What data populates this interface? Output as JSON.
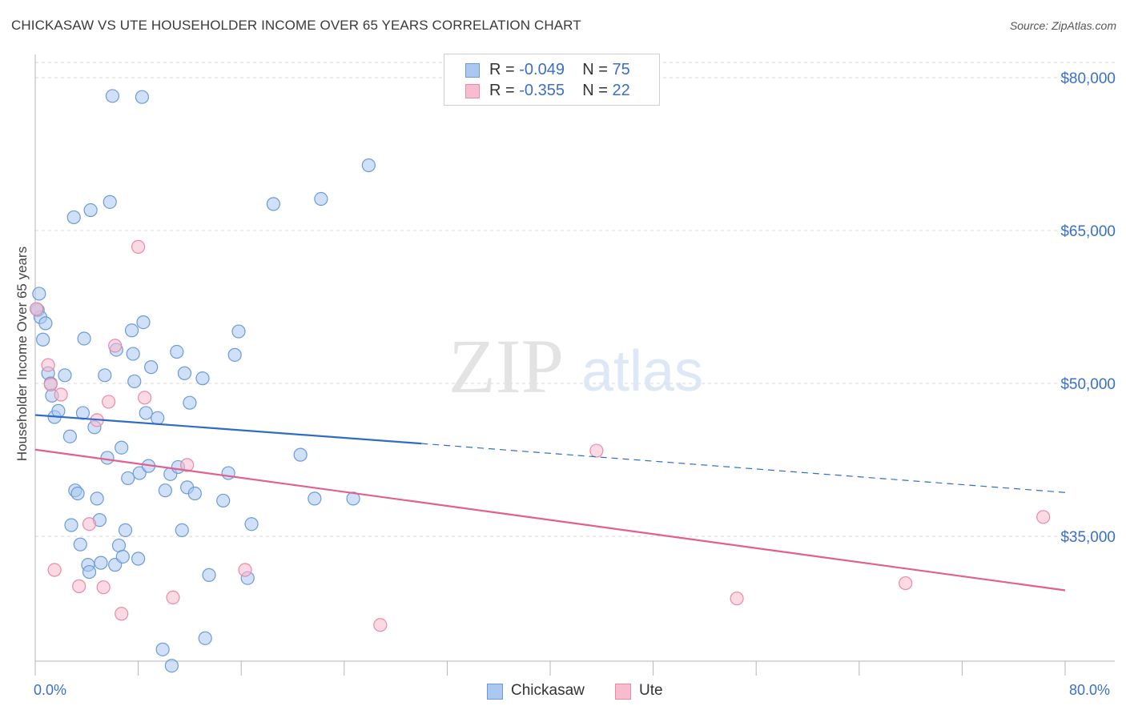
{
  "title": "CHICKASAW VS UTE HOUSEHOLDER INCOME OVER 65 YEARS CORRELATION CHART",
  "source": "Source: ZipAtlas.com",
  "watermark": {
    "zip": "ZIP",
    "atlas": "atlas"
  },
  "legend": {
    "rows": [
      {
        "r_label": "R =",
        "r_value": "-0.049",
        "n_label": "N =",
        "n_value": "75"
      },
      {
        "r_label": "R =",
        "r_value": "-0.355",
        "n_label": "N =",
        "n_value": "22"
      }
    ]
  },
  "bottom_legend": {
    "chickasaw": "Chickasaw",
    "ute": "Ute"
  },
  "x_axis": {
    "min_label": "0.0%",
    "max_label": "80.0%"
  },
  "colors": {
    "chickasaw_fill": "#aac8f0",
    "chickasaw_stroke": "#6c9ad8",
    "chickasaw_line": "#2f6cc8",
    "ute_fill": "#f7bccd",
    "ute_stroke": "#e88aa8",
    "ute_line": "#e0608e",
    "tick_text": "#3b6fc9",
    "grid": "#d9d9d9"
  },
  "chart_data": {
    "type": "scatter",
    "title": "CHICKASAW VS UTE HOUSEHOLDER INCOME OVER 65 YEARS CORRELATION CHART",
    "xlabel": "",
    "ylabel": "Householder Income Over 65 years",
    "xlim": [
      0,
      80
    ],
    "ylim": [
      20000,
      82500
    ],
    "y_ticks": [
      35000,
      50000,
      65000,
      80000
    ],
    "y_tick_labels": [
      "$35,000",
      "$50,000",
      "$65,000",
      "$80,000"
    ],
    "x_tick_labels_shown": [
      "0.0%",
      "80.0%"
    ],
    "grid": true,
    "legend_position": "top-center",
    "series": [
      {
        "name": "Chickasaw",
        "r": -0.049,
        "n": 75,
        "trend": {
          "x0": 0,
          "y0": 46900,
          "x1": 30,
          "y1": 44100,
          "dashed_to_x": 80,
          "dashed_y": 39300
        },
        "points": [
          [
            0.2,
            57200
          ],
          [
            0.3,
            58800
          ],
          [
            0.4,
            56500
          ],
          [
            0.6,
            54300
          ],
          [
            0.8,
            55900
          ],
          [
            1.0,
            51000
          ],
          [
            1.2,
            50000
          ],
          [
            1.3,
            48800
          ],
          [
            1.5,
            46700
          ],
          [
            1.8,
            47300
          ],
          [
            2.3,
            50800
          ],
          [
            2.7,
            44800
          ],
          [
            2.8,
            36100
          ],
          [
            3.0,
            66300
          ],
          [
            3.1,
            39500
          ],
          [
            3.3,
            39200
          ],
          [
            3.5,
            34200
          ],
          [
            3.7,
            47100
          ],
          [
            3.8,
            54400
          ],
          [
            4.1,
            32200
          ],
          [
            4.2,
            31500
          ],
          [
            4.3,
            67000
          ],
          [
            4.6,
            45700
          ],
          [
            4.8,
            38700
          ],
          [
            5.0,
            36600
          ],
          [
            5.1,
            32400
          ],
          [
            5.4,
            50800
          ],
          [
            5.6,
            42700
          ],
          [
            5.8,
            67800
          ],
          [
            6.0,
            78200
          ],
          [
            6.2,
            32200
          ],
          [
            6.3,
            53300
          ],
          [
            6.5,
            34100
          ],
          [
            6.7,
            43700
          ],
          [
            6.8,
            33000
          ],
          [
            7.0,
            35600
          ],
          [
            7.2,
            40700
          ],
          [
            7.5,
            55200
          ],
          [
            7.6,
            52900
          ],
          [
            7.7,
            50200
          ],
          [
            8.0,
            32800
          ],
          [
            8.1,
            41200
          ],
          [
            8.3,
            78100
          ],
          [
            8.4,
            56000
          ],
          [
            8.6,
            47100
          ],
          [
            8.8,
            41900
          ],
          [
            9.0,
            51600
          ],
          [
            9.5,
            46600
          ],
          [
            9.9,
            23900
          ],
          [
            10.1,
            39500
          ],
          [
            10.5,
            41100
          ],
          [
            10.6,
            22300
          ],
          [
            11.0,
            53100
          ],
          [
            11.1,
            41800
          ],
          [
            11.4,
            35600
          ],
          [
            11.6,
            51000
          ],
          [
            11.8,
            39800
          ],
          [
            12.0,
            48100
          ],
          [
            12.4,
            39200
          ],
          [
            13.0,
            50500
          ],
          [
            13.2,
            25000
          ],
          [
            13.5,
            31200
          ],
          [
            14.6,
            38500
          ],
          [
            15.0,
            41200
          ],
          [
            15.5,
            52800
          ],
          [
            15.8,
            55100
          ],
          [
            16.5,
            30900
          ],
          [
            16.8,
            36200
          ],
          [
            18.5,
            67600
          ],
          [
            20.6,
            43000
          ],
          [
            21.7,
            38700
          ],
          [
            22.2,
            68100
          ],
          [
            24.7,
            38700
          ],
          [
            25.9,
            71400
          ],
          [
            0.1,
            57300
          ]
        ]
      },
      {
        "name": "Ute",
        "r": -0.355,
        "n": 22,
        "trend": {
          "x0": 0,
          "y0": 43500,
          "x1": 80,
          "y1": 29700
        },
        "points": [
          [
            0.1,
            57300
          ],
          [
            1.0,
            51800
          ],
          [
            1.2,
            49900
          ],
          [
            1.5,
            31700
          ],
          [
            2.0,
            48900
          ],
          [
            3.4,
            30100
          ],
          [
            4.2,
            36200
          ],
          [
            4.8,
            46400
          ],
          [
            5.3,
            30000
          ],
          [
            5.7,
            48200
          ],
          [
            6.2,
            53700
          ],
          [
            6.7,
            27400
          ],
          [
            8.0,
            63400
          ],
          [
            8.5,
            48600
          ],
          [
            10.7,
            29000
          ],
          [
            11.8,
            42000
          ],
          [
            16.3,
            31700
          ],
          [
            26.8,
            26300
          ],
          [
            43.6,
            43400
          ],
          [
            54.5,
            28900
          ],
          [
            67.6,
            30400
          ],
          [
            78.3,
            36900
          ]
        ]
      }
    ]
  }
}
